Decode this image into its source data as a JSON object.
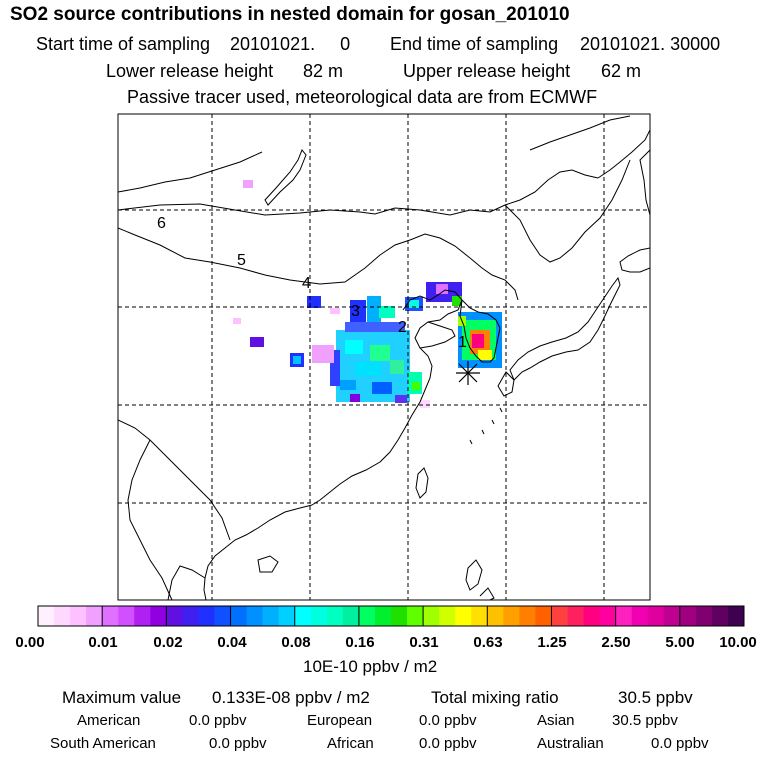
{
  "title": "SO2 source contributions in nested domain for gosan_201010",
  "sampling": {
    "start_label": "Start time of sampling",
    "start_value": "20101021.     0",
    "end_label": "End time of sampling",
    "end_value": "20101021. 30000"
  },
  "release": {
    "lower_label": "Lower release height",
    "lower_value": "82 m",
    "upper_label": "Upper release height",
    "upper_value": "62 m"
  },
  "tracer_note": "Passive tracer used, meteorological data are from ECMWF",
  "map": {
    "receptor_marker": "asterisk-icon",
    "region_labels": [
      "1",
      "2",
      "3",
      "4",
      "5",
      "6"
    ],
    "ocean_color": "#ffffff",
    "line_color": "#000000"
  },
  "colorbar": {
    "ticks": [
      "0.00",
      "0.01",
      "0.02",
      "0.04",
      "0.08",
      "0.16",
      "0.31",
      "0.63",
      "1.25",
      "2.50",
      "5.00",
      "10.00"
    ],
    "units": "10E-10 ppbv / m2",
    "colors": [
      "#fff0ff",
      "#ffd8ff",
      "#ffc0ff",
      "#f0a0ff",
      "#e070ff",
      "#d050ff",
      "#b020f0",
      "#9000e0",
      "#6010e0",
      "#4020f0",
      "#2030ff",
      "#1050ff",
      "#0070ff",
      "#0090ff",
      "#00b0ff",
      "#00d0ff",
      "#00ffff",
      "#00ffe0",
      "#00ffc0",
      "#00f0a0",
      "#00ff60",
      "#00f030",
      "#20e000",
      "#60ff00",
      "#a0ff00",
      "#d0ff00",
      "#ffff00",
      "#ffe000",
      "#ffc000",
      "#ffa000",
      "#ff8000",
      "#ff6000",
      "#ff4040",
      "#ff2060",
      "#ff0080",
      "#ff00a0",
      "#ff20c0",
      "#f000b0",
      "#e000a0",
      "#c00090",
      "#a00080",
      "#800070",
      "#600060",
      "#400050"
    ]
  },
  "stats": {
    "max_label": "Maximum value",
    "max_value": "0.133E-08 ppbv / m2",
    "total_label": "Total mixing ratio",
    "total_value": "30.5 ppbv"
  },
  "regions": [
    {
      "name": "American",
      "value": "0.0 ppbv"
    },
    {
      "name": "European",
      "value": "0.0 ppbv"
    },
    {
      "name": "Asian",
      "value": "30.5 ppbv"
    },
    {
      "name": "South American",
      "value": "0.0 ppbv"
    },
    {
      "name": "African",
      "value": "0.0 ppbv"
    },
    {
      "name": "Australian",
      "value": "0.0 ppbv"
    }
  ]
}
